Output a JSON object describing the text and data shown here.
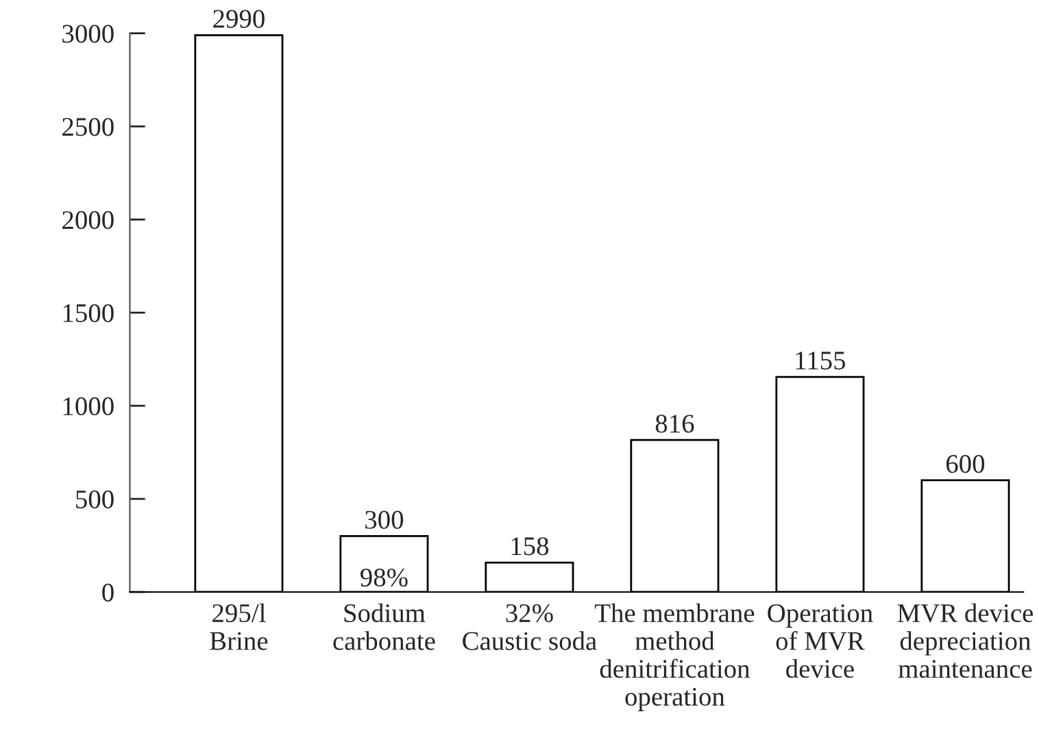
{
  "chart_data": {
    "type": "bar",
    "categories": [
      "295/l\nBrine",
      "Sodium\ncarbonate",
      "32%\nCaustic soda",
      "The membrane\nmethod\ndenitrification\noperation",
      "Operation\nof MVR\ndevice",
      "MVR device\ndepreciation\nmaintenance"
    ],
    "values": [
      2990,
      300,
      158,
      816,
      1155,
      600
    ],
    "color": "#ffffff",
    "data_labels": true,
    "ylim": [
      0,
      3000
    ],
    "yticks": [
      0,
      500,
      1000,
      1500,
      2000,
      2500,
      3000
    ],
    "grid": false,
    "annotations": [
      {
        "text": "98%",
        "x": "Sodium\ncarbonate",
        "y": 0
      }
    ]
  }
}
